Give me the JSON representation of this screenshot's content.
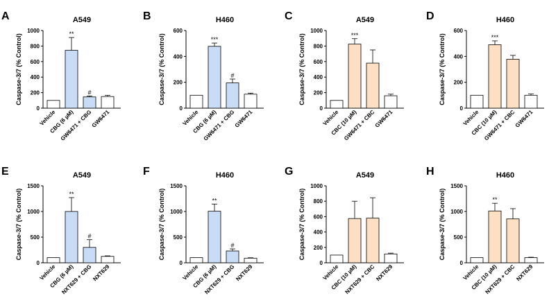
{
  "colors": {
    "cbg": "#c9dcf6",
    "cbc": "#fde0c3",
    "vehicle": "#ffffff",
    "stroke": "#000000"
  },
  "chart_data": [
    {
      "type": "bar",
      "panel": "A",
      "title": "A549",
      "ylabel": "Caspase-3/7 (% Control)",
      "ylim": [
        0,
        1000
      ],
      "yticks": [
        0,
        200,
        400,
        600,
        800,
        1000
      ],
      "categories": [
        "Vehicle",
        "CBG (6 µM)",
        "GW6471 + CBG",
        "GW6471"
      ],
      "values": [
        100,
        745,
        145,
        150
      ],
      "errors": [
        0,
        165,
        12,
        15
      ],
      "annotations": [
        "",
        "**",
        "#",
        ""
      ],
      "fills": [
        "vehicle",
        "cbg",
        "cbg",
        "vehicle"
      ]
    },
    {
      "type": "bar",
      "panel": "B",
      "title": "H460",
      "ylabel": "Caspase-3/7 (% Control)",
      "ylim": [
        0,
        600
      ],
      "yticks": [
        0,
        200,
        400,
        600
      ],
      "categories": [
        "Vehicle",
        "CBG (6 µM)",
        "GW6471 + CBG",
        "GW6471"
      ],
      "values": [
        100,
        478,
        195,
        108
      ],
      "errors": [
        0,
        25,
        30,
        8
      ],
      "annotations": [
        "",
        "***",
        "#",
        ""
      ],
      "fills": [
        "vehicle",
        "cbg",
        "cbg",
        "vehicle"
      ]
    },
    {
      "type": "bar",
      "panel": "C",
      "title": "A549",
      "ylabel": "Caspase-3/7 (% Control)",
      "ylim": [
        0,
        1000
      ],
      "yticks": [
        0,
        200,
        400,
        600,
        800,
        1000
      ],
      "categories": [
        "Vehicle",
        "CBC (10 µM)",
        "GW6471 + CBC",
        "GW6471"
      ],
      "values": [
        100,
        825,
        580,
        160
      ],
      "errors": [
        0,
        70,
        170,
        20
      ],
      "annotations": [
        "",
        "***",
        "",
        ""
      ],
      "fills": [
        "vehicle",
        "cbc",
        "cbc",
        "vehicle"
      ]
    },
    {
      "type": "bar",
      "panel": "D",
      "title": "H460",
      "ylabel": "Caspase-3/7 (% Control)",
      "ylim": [
        0,
        600
      ],
      "yticks": [
        0,
        200,
        400,
        600
      ],
      "categories": [
        "Vehicle",
        "CBC (10 µM)",
        "GW6471 + CBC",
        "GW6471"
      ],
      "values": [
        100,
        490,
        378,
        100
      ],
      "errors": [
        0,
        30,
        30,
        10
      ],
      "annotations": [
        "",
        "***",
        "",
        ""
      ],
      "fills": [
        "vehicle",
        "cbc",
        "cbc",
        "vehicle"
      ]
    },
    {
      "type": "bar",
      "panel": "E",
      "title": "A549",
      "ylabel": "Caspase-3/7 (% Control)",
      "ylim": [
        0,
        1500
      ],
      "yticks": [
        0,
        500,
        1000,
        1500
      ],
      "categories": [
        "Vehicle",
        "CBG (6 µM)",
        "NXT629 + CBG",
        "NXT629"
      ],
      "values": [
        100,
        1000,
        300,
        125
      ],
      "errors": [
        0,
        270,
        150,
        10
      ],
      "annotations": [
        "",
        "**",
        "#",
        ""
      ],
      "fills": [
        "vehicle",
        "cbg",
        "cbg",
        "vehicle"
      ]
    },
    {
      "type": "bar",
      "panel": "F",
      "title": "H460",
      "ylabel": "Caspase-3/7 (% Control)",
      "ylim": [
        0,
        1500
      ],
      "yticks": [
        0,
        500,
        1000,
        1500
      ],
      "categories": [
        "Vehicle",
        "CBG (6 µM)",
        "NXT629 + CBG",
        "NXT629"
      ],
      "values": [
        100,
        1005,
        230,
        90
      ],
      "errors": [
        0,
        140,
        40,
        8
      ],
      "annotations": [
        "",
        "**",
        "#",
        ""
      ],
      "fills": [
        "vehicle",
        "cbg",
        "cbg",
        "vehicle"
      ]
    },
    {
      "type": "bar",
      "panel": "G",
      "title": "A549",
      "ylabel": "Caspase-3/7 (% Control)",
      "ylim": [
        0,
        1000
      ],
      "yticks": [
        0,
        200,
        400,
        600,
        800,
        1000
      ],
      "categories": [
        "Vehicle",
        "CBC (10 µM)",
        "NXT629 + CBC",
        "NXT629"
      ],
      "values": [
        100,
        575,
        580,
        115
      ],
      "errors": [
        0,
        225,
        265,
        10
      ],
      "annotations": [
        "",
        "",
        "",
        ""
      ],
      "fills": [
        "vehicle",
        "cbc",
        "cbc",
        "vehicle"
      ]
    },
    {
      "type": "bar",
      "panel": "H",
      "title": "H460",
      "ylabel": "Caspase-3/7 (% Control)",
      "ylim": [
        0,
        1500
      ],
      "yticks": [
        0,
        500,
        1000,
        1500
      ],
      "categories": [
        "Vehicle",
        "CBC (10 µM)",
        "NXT629 + CBC",
        "NXT629"
      ],
      "values": [
        100,
        1010,
        855,
        100
      ],
      "errors": [
        0,
        150,
        200,
        8
      ],
      "annotations": [
        "",
        "**",
        "",
        ""
      ],
      "fills": [
        "vehicle",
        "cbc",
        "cbc",
        "vehicle"
      ]
    }
  ]
}
